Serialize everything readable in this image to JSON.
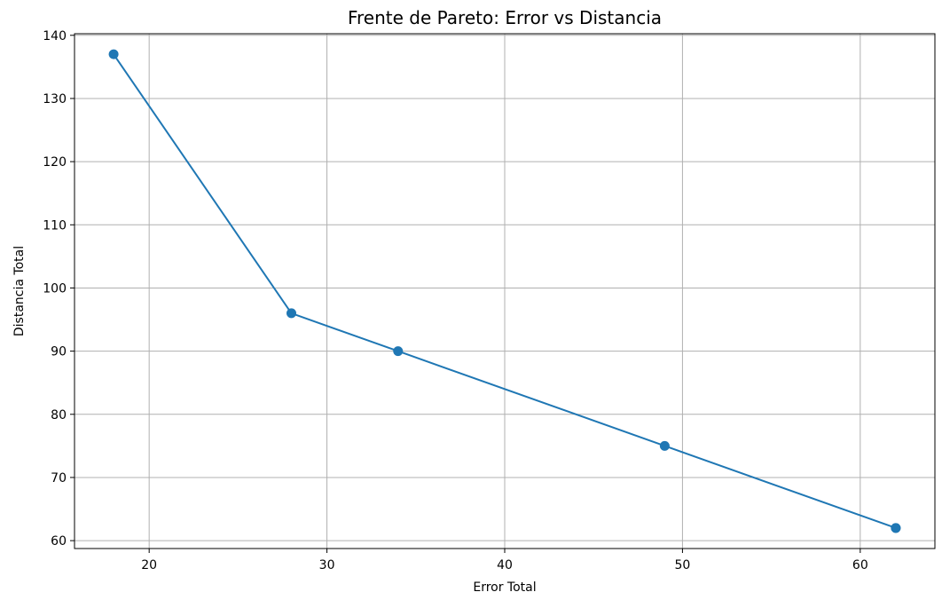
{
  "chart_data": {
    "type": "line",
    "title": "Frente de Pareto: Error vs Distancia",
    "xlabel": "Error Total",
    "ylabel": "Distancia Total",
    "xlim": [
      15.8,
      64.2
    ],
    "ylim": [
      58.75,
      140.25
    ],
    "xticks": [
      20,
      30,
      40,
      50,
      60
    ],
    "yticks": [
      60,
      70,
      80,
      90,
      100,
      110,
      120,
      130,
      140
    ],
    "grid": true,
    "series": [
      {
        "color": "#1f77b4",
        "marker": "circle",
        "points": [
          {
            "x": 18,
            "y": 137
          },
          {
            "x": 28,
            "y": 96
          },
          {
            "x": 34,
            "y": 90
          },
          {
            "x": 49,
            "y": 75
          },
          {
            "x": 62,
            "y": 62
          },
          {
            "x": 62,
            "y": 62
          }
        ]
      }
    ]
  }
}
